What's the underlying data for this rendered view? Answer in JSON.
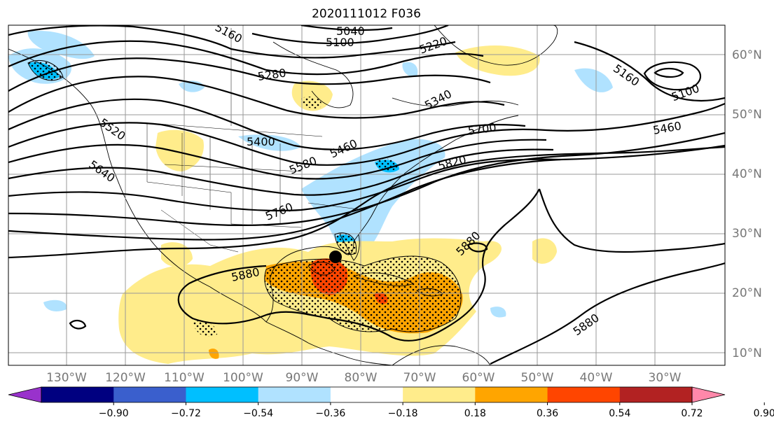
{
  "title": "2020111012 F036",
  "lat_labels": [
    "60°N",
    "50°N",
    "40°N",
    "30°N",
    "20°N",
    "10°N"
  ],
  "lon_labels": [
    "130°W",
    "120°W",
    "110°W",
    "100°W",
    "90°W",
    "80°W",
    "70°W",
    "60°W",
    "50°W",
    "40°W",
    "30°W"
  ],
  "contour_labels": [
    "5040",
    "5100",
    "5160",
    "5220",
    "5280",
    "5340",
    "5400",
    "5460",
    "5520",
    "5580",
    "5640",
    "5700",
    "5760",
    "5820",
    "5880",
    "5880",
    "5880",
    "5160",
    "5100",
    "5460"
  ],
  "colorbar": {
    "ticks": [
      "−0.90",
      "−0.72",
      "−0.54",
      "−0.36",
      "−0.18",
      "0.18",
      "0.36",
      "0.54",
      "0.72",
      "0.90"
    ],
    "colors": [
      "#9932cc",
      "#000080",
      "#3a5fcd",
      "#00bfff",
      "#b0e2ff",
      "#ffffff",
      "#ffec8b",
      "#ffa500",
      "#ff4500",
      "#b22222",
      "#ff88aa"
    ]
  },
  "colors": {
    "light_blue": "#b0e2ff",
    "mid_blue": "#00bfff",
    "light_yellow": "#ffec8b",
    "orange": "#ffa500",
    "red_orange": "#ff4500",
    "contour": "#000000",
    "grid": "#999999",
    "axis_label": "#777777"
  }
}
